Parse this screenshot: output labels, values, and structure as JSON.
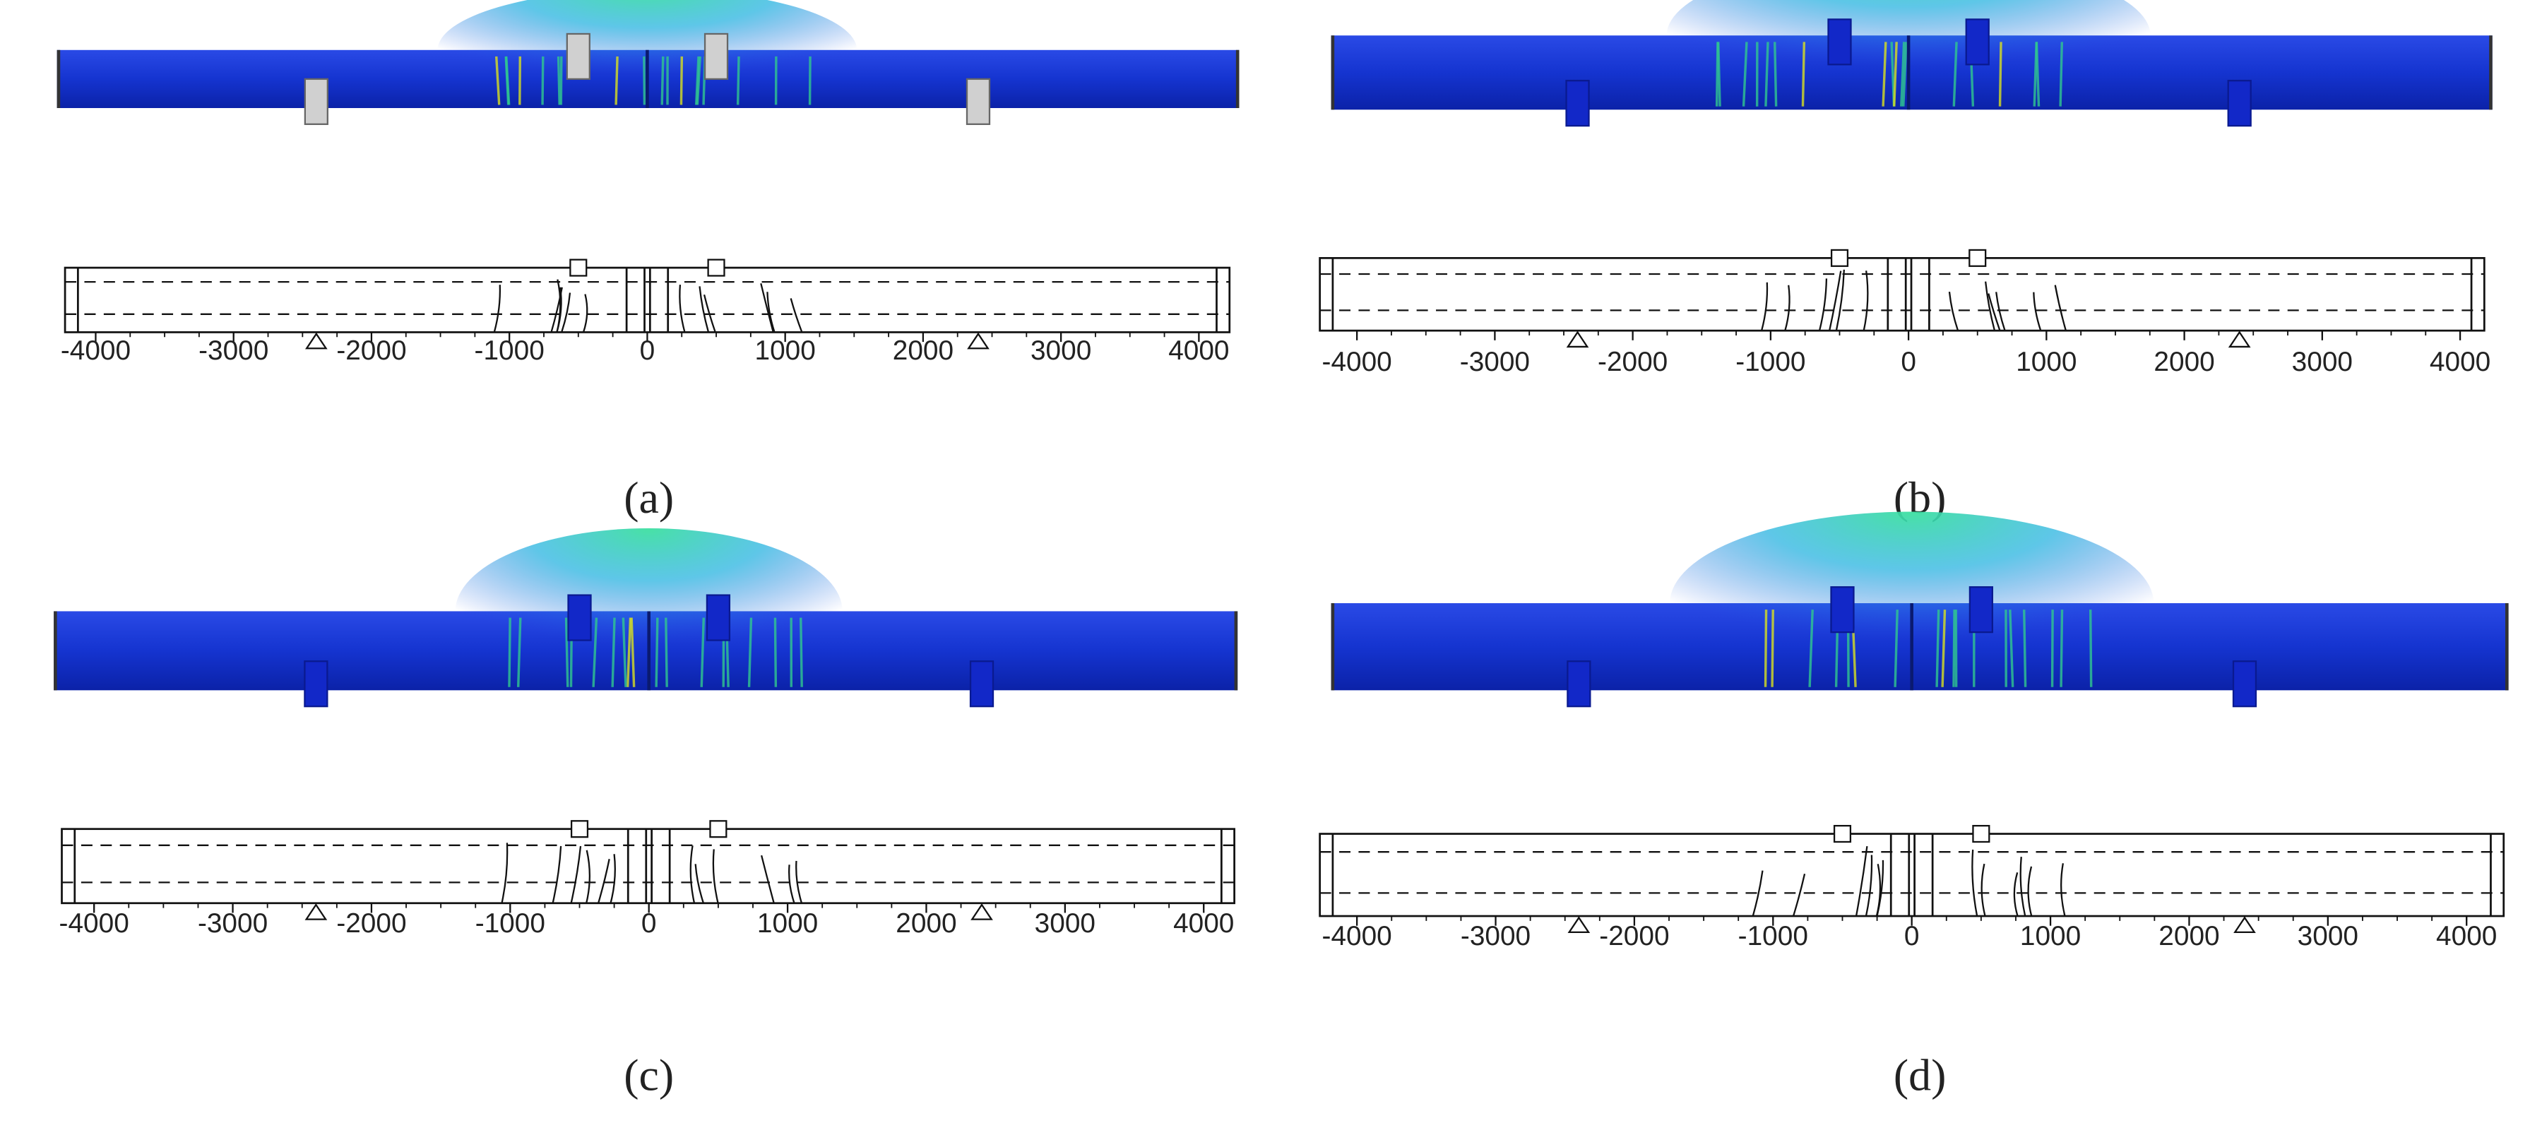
{
  "panels": [
    {
      "caption": "(a)",
      "axis_ticks": [
        -4000,
        -3000,
        -2000,
        -1000,
        0,
        1000,
        2000,
        3000,
        4000
      ]
    },
    {
      "caption": "(b)",
      "axis_ticks": [
        -4000,
        -3000,
        -2000,
        -1000,
        0,
        1000,
        2000,
        3000,
        4000
      ]
    },
    {
      "caption": "(c)",
      "axis_ticks": [
        -4000,
        -3000,
        -2000,
        -1000,
        0,
        1000,
        2000,
        3000,
        4000
      ]
    },
    {
      "caption": "(d)",
      "axis_ticks": [
        -4000,
        -3000,
        -2000,
        -1000,
        0,
        1000,
        2000,
        3000,
        4000
      ]
    }
  ]
}
